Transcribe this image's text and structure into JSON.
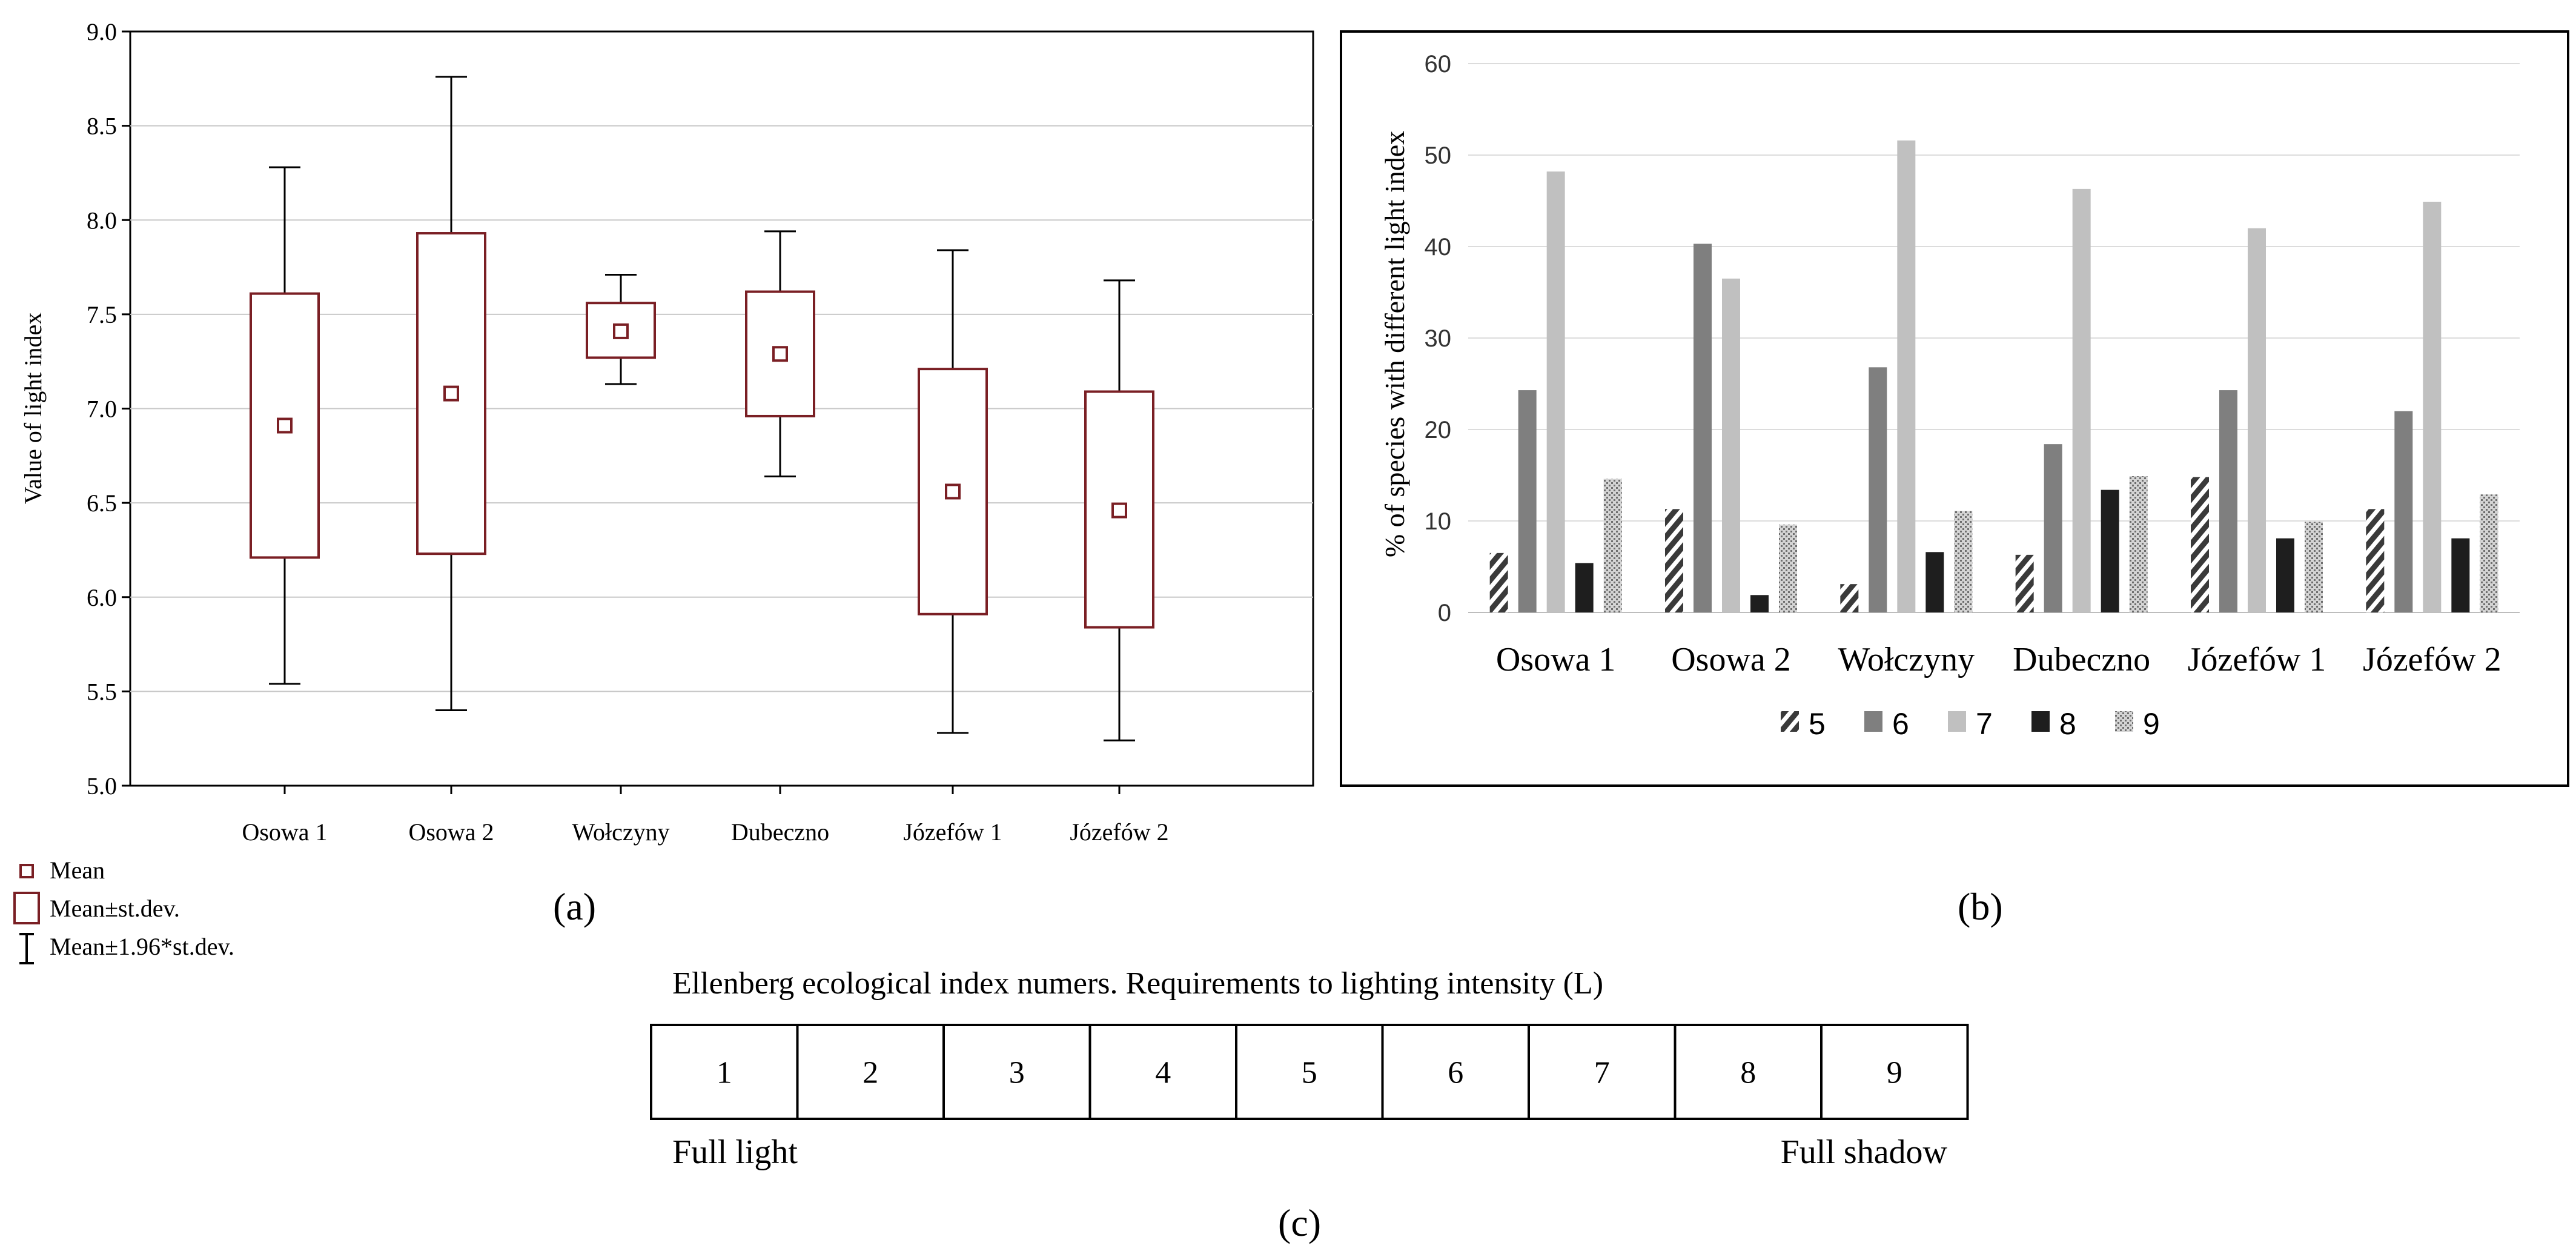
{
  "chart_data": [
    {
      "panel": "a",
      "type": "box",
      "panel_label": "(a)",
      "ylabel": "Value of light index",
      "ylim": [
        5.0,
        9.0
      ],
      "yticks": [
        "5.0",
        "5.5",
        "6.0",
        "6.5",
        "7.0",
        "7.5",
        "8.0",
        "8.5",
        "9.0"
      ],
      "ytick_values": [
        5.0,
        5.5,
        6.0,
        6.5,
        7.0,
        7.5,
        8.0,
        8.5,
        9.0
      ],
      "grid": true,
      "categories": [
        "Osowa 1",
        "Osowa 2",
        "Wołczyny",
        "Dubeczno",
        "Józefów 1",
        "Józefów 2"
      ],
      "mean": [
        6.91,
        7.08,
        7.41,
        7.29,
        6.56,
        6.46
      ],
      "sd_low": [
        6.21,
        6.23,
        7.27,
        6.96,
        5.91,
        5.84
      ],
      "sd_high": [
        7.61,
        7.93,
        7.56,
        7.62,
        7.21,
        7.09
      ],
      "whisker_low": [
        5.54,
        5.4,
        7.13,
        6.64,
        5.28,
        5.24
      ],
      "whisker_high": [
        8.28,
        8.76,
        7.71,
        7.94,
        7.84,
        7.68
      ],
      "legend": {
        "mean": "Mean",
        "sd": "Mean±st.dev.",
        "ci": "Mean±1.96*st.dev."
      },
      "color": "#7a1f24"
    },
    {
      "panel": "b",
      "type": "bar",
      "panel_label": "(b)",
      "ylabel": "% of species with different  light  index",
      "ylim": [
        0,
        60
      ],
      "yticks": [
        "0",
        "10",
        "20",
        "30",
        "40",
        "50",
        "60"
      ],
      "ytick_values": [
        0,
        10,
        20,
        30,
        40,
        50,
        60
      ],
      "grid": true,
      "legend_position": "bottom",
      "categories": [
        "Osowa 1",
        "Osowa 2",
        "Wołczyny",
        "Dubeczno",
        "Józefów 1",
        "Józefów 2"
      ],
      "series": [
        {
          "name": "5",
          "style": "hatch",
          "values": [
            6.5,
            11.3,
            3.1,
            6.3,
            14.8,
            11.3
          ]
        },
        {
          "name": "6",
          "style": "#7f7f7f",
          "values": [
            24.3,
            40.3,
            26.8,
            18.4,
            24.3,
            22.0
          ]
        },
        {
          "name": "7",
          "style": "#c0c0c0",
          "values": [
            48.2,
            36.5,
            51.6,
            46.3,
            42.0,
            44.9
          ]
        },
        {
          "name": "8",
          "style": "#1e1e1e",
          "values": [
            5.4,
            1.9,
            6.6,
            13.4,
            8.1,
            8.1
          ]
        },
        {
          "name": "9",
          "style": "dots",
          "values": [
            14.6,
            9.6,
            11.1,
            14.9,
            9.9,
            12.9
          ]
        }
      ]
    },
    {
      "panel": "c",
      "type": "table",
      "panel_label": "(c)",
      "title": "Ellenberg  ecological  index numers. Requirements to lighting  intensity  (L)",
      "cells": [
        "1",
        "2",
        "3",
        "4",
        "5",
        "6",
        "7",
        "8",
        "9"
      ],
      "left_label": "Full light",
      "right_label": "Full shadow"
    }
  ]
}
